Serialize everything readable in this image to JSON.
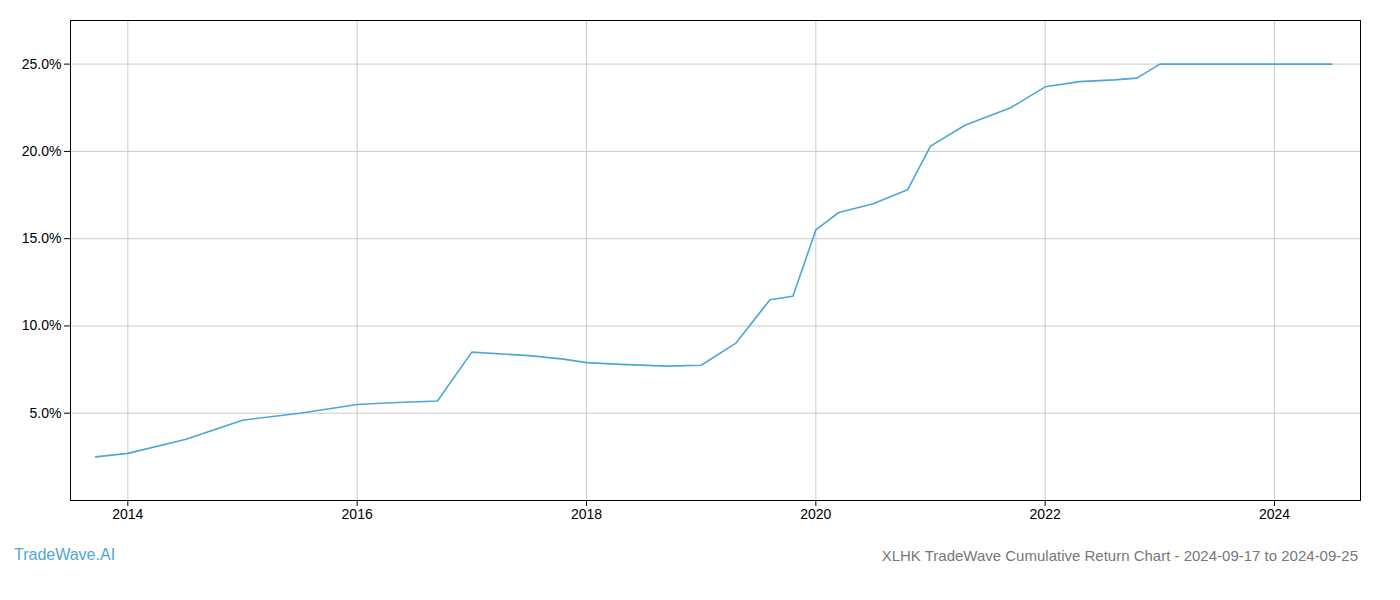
{
  "chart_data": {
    "type": "line",
    "title": "XLHK TradeWave Cumulative Return Chart - 2024-09-17 to 2024-09-25",
    "annotations": [
      "TradeWave.AI"
    ],
    "x": [
      2013.72,
      2014.0,
      2014.5,
      2015.0,
      2015.5,
      2016.0,
      2016.3,
      2016.7,
      2017.0,
      2017.5,
      2017.8,
      2018.0,
      2018.3,
      2018.7,
      2019.0,
      2019.3,
      2019.6,
      2019.8,
      2020.0,
      2020.2,
      2020.5,
      2020.8,
      2021.0,
      2021.3,
      2021.7,
      2022.0,
      2022.3,
      2022.6,
      2022.8,
      2023.0,
      2023.3,
      2023.5,
      2023.8,
      2024.0,
      2024.5
    ],
    "values": [
      2.5,
      2.7,
      3.5,
      4.6,
      5.0,
      5.5,
      5.6,
      5.7,
      8.5,
      8.3,
      8.1,
      7.9,
      7.8,
      7.7,
      7.75,
      9.0,
      11.5,
      11.7,
      15.5,
      16.5,
      17.0,
      17.8,
      20.3,
      21.5,
      22.5,
      23.7,
      24.0,
      24.1,
      24.2,
      25.0,
      25.0,
      25.0,
      25.0,
      25.0,
      25.0
    ],
    "color": "#4da6d8",
    "xlim": [
      2013.5,
      2024.75
    ],
    "ylim": [
      0,
      27.5
    ],
    "xticks": [
      2014,
      2016,
      2018,
      2020,
      2022,
      2024
    ],
    "yticks": [
      {
        "value": 5.0,
        "label": "5.0%"
      },
      {
        "value": 10.0,
        "label": "10.0%"
      },
      {
        "value": 15.0,
        "label": "15.0%"
      },
      {
        "value": 20.0,
        "label": "20.0%"
      },
      {
        "value": 25.0,
        "label": "25.0%"
      }
    ],
    "grid": true
  }
}
